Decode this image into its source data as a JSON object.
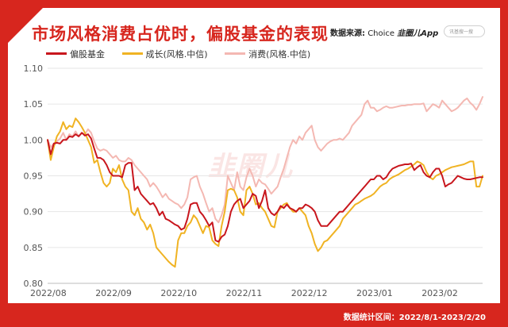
{
  "header": {
    "title": "市场风格消费占优时，偏股基金的表现",
    "source_label": "数据来源:",
    "source_name": "Choice",
    "source_app": "韭圈儿App",
    "search_placeholder": "讯基搜一搜"
  },
  "watermark": "韭圈儿",
  "footer": {
    "stat_range": "数据统计区间：2022/8/1-2023/2/20"
  },
  "colors": {
    "frame": "#d7261e",
    "fund": "#c8161d",
    "growth": "#f0b323",
    "consumer": "#f4b8b2"
  },
  "chart_data": {
    "type": "line",
    "title": "市场风格消费占优时，偏股基金的表现",
    "xlabel": "",
    "ylabel": "",
    "ylim": [
      0.8,
      1.1
    ],
    "yticks": [
      "0.80",
      "0.85",
      "0.90",
      "0.95",
      "1.00",
      "1.05",
      "1.10"
    ],
    "xlim": [
      0,
      140
    ],
    "xticks": [
      {
        "label": "2022/08",
        "x": 0
      },
      {
        "label": "2022/09",
        "x": 21
      },
      {
        "label": "2022/10",
        "x": 42
      },
      {
        "label": "2022/11",
        "x": 63
      },
      {
        "label": "2022/12",
        "x": 84
      },
      {
        "label": "2023/01",
        "x": 105
      },
      {
        "label": "2023/02",
        "x": 126
      }
    ],
    "legend_position": "top-left",
    "grid": "horizontal",
    "series": [
      {
        "name": "偏股基金",
        "color": "#c8161d",
        "x": [
          0,
          1,
          2,
          3,
          4,
          5,
          6,
          7,
          8,
          9,
          10,
          11,
          12,
          13,
          14,
          15,
          16,
          17,
          18,
          19,
          20,
          21,
          22,
          23,
          24,
          25,
          26,
          27,
          28,
          29,
          30,
          31,
          32,
          33,
          34,
          35,
          36,
          37,
          38,
          39,
          40,
          41,
          42,
          43,
          44,
          45,
          46,
          47,
          48,
          49,
          50,
          51,
          52,
          53,
          54,
          55,
          56,
          57,
          58,
          59,
          60,
          61,
          62,
          63,
          64,
          65,
          66,
          67,
          68,
          69,
          70,
          71,
          72,
          73,
          74,
          75,
          76,
          77,
          78,
          79,
          80,
          81,
          82,
          83,
          84,
          85,
          86,
          87,
          88,
          89,
          90,
          91,
          92,
          93,
          94,
          95,
          96,
          97,
          98,
          99,
          100,
          101,
          102,
          103,
          104,
          105,
          106,
          107,
          108,
          109,
          110,
          111,
          112,
          113,
          114,
          115,
          116,
          117,
          118,
          119,
          120,
          121,
          122,
          123,
          124,
          125,
          126,
          127,
          128,
          129,
          130,
          131,
          132,
          133,
          134,
          135,
          136,
          137,
          138,
          139,
          140
        ],
        "values": [
          1.0,
          0.98,
          0.995,
          0.996,
          0.995,
          1.0,
          1.0,
          1.005,
          1.004,
          1.008,
          1.005,
          1.01,
          1.006,
          1.008,
          1.002,
          0.988,
          0.975,
          0.975,
          0.972,
          0.965,
          0.955,
          0.95,
          0.95,
          0.95,
          0.948,
          0.965,
          0.968,
          0.968,
          0.93,
          0.935,
          0.925,
          0.92,
          0.915,
          0.91,
          0.912,
          0.905,
          0.895,
          0.9,
          0.89,
          0.888,
          0.885,
          0.882,
          0.88,
          0.875,
          0.877,
          0.89,
          0.91,
          0.912,
          0.912,
          0.9,
          0.895,
          0.888,
          0.88,
          0.885,
          0.86,
          0.858,
          0.865,
          0.868,
          0.88,
          0.9,
          0.91,
          0.915,
          0.918,
          0.905,
          0.91,
          0.915,
          0.925,
          0.922,
          0.905,
          0.915,
          0.93,
          0.905,
          0.898,
          0.895,
          0.9,
          0.908,
          0.905,
          0.91,
          0.905,
          0.903,
          0.9,
          0.905,
          0.905,
          0.91,
          0.908,
          0.905,
          0.9,
          0.888,
          0.88,
          0.88,
          0.88,
          0.885,
          0.89,
          0.895,
          0.9,
          0.9,
          0.905,
          0.91,
          0.915,
          0.92,
          0.925,
          0.93,
          0.935,
          0.94,
          0.945,
          0.945,
          0.95,
          0.95,
          0.945,
          0.948,
          0.955,
          0.96,
          0.962,
          0.964,
          0.965,
          0.966,
          0.966,
          0.967,
          0.958,
          0.962,
          0.965,
          0.955,
          0.95,
          0.948,
          0.955,
          0.96,
          0.96,
          0.95,
          0.935,
          0.938,
          0.94,
          0.945,
          0.95,
          0.948,
          0.946,
          0.945,
          0.945,
          0.946,
          0.947,
          0.948,
          0.948
        ]
      },
      {
        "name": "成长(风格.中信)",
        "color": "#f0b323",
        "x": [
          0,
          1,
          2,
          3,
          4,
          5,
          6,
          7,
          8,
          9,
          10,
          11,
          12,
          13,
          14,
          15,
          16,
          17,
          18,
          19,
          20,
          21,
          22,
          23,
          24,
          25,
          26,
          27,
          28,
          29,
          30,
          31,
          32,
          33,
          34,
          35,
          36,
          37,
          38,
          39,
          40,
          41,
          42,
          43,
          44,
          45,
          46,
          47,
          48,
          49,
          50,
          51,
          52,
          53,
          54,
          55,
          56,
          57,
          58,
          59,
          60,
          61,
          62,
          63,
          64,
          65,
          66,
          67,
          68,
          69,
          70,
          71,
          72,
          73,
          74,
          75,
          76,
          77,
          78,
          79,
          80,
          81,
          82,
          83,
          84,
          85,
          86,
          87,
          88,
          89,
          90,
          91,
          92,
          93,
          94,
          95,
          96,
          97,
          98,
          99,
          100,
          101,
          102,
          103,
          104,
          105,
          106,
          107,
          108,
          109,
          110,
          111,
          112,
          113,
          114,
          115,
          116,
          117,
          118,
          119,
          120,
          121,
          122,
          123,
          124,
          125,
          126,
          127,
          128,
          129,
          130,
          131,
          132,
          133,
          134,
          135,
          136,
          137,
          138,
          139,
          140
        ],
        "values": [
          1.0,
          0.972,
          0.99,
          1.005,
          1.012,
          1.025,
          1.015,
          1.02,
          1.018,
          1.03,
          1.025,
          1.018,
          1.01,
          1.0,
          0.99,
          0.968,
          0.972,
          0.955,
          0.94,
          0.935,
          0.94,
          0.96,
          0.955,
          0.965,
          0.945,
          0.935,
          0.93,
          0.9,
          0.895,
          0.905,
          0.89,
          0.885,
          0.875,
          0.882,
          0.87,
          0.85,
          0.845,
          0.84,
          0.835,
          0.83,
          0.826,
          0.823,
          0.86,
          0.87,
          0.87,
          0.88,
          0.885,
          0.895,
          0.89,
          0.88,
          0.87,
          0.88,
          0.878,
          0.86,
          0.855,
          0.852,
          0.88,
          0.9,
          0.93,
          0.932,
          0.93,
          0.92,
          0.9,
          0.895,
          0.93,
          0.935,
          0.925,
          0.91,
          0.912,
          0.905,
          0.9,
          0.89,
          0.88,
          0.878,
          0.9,
          0.905,
          0.91,
          0.912,
          0.905,
          0.9,
          0.9,
          0.905,
          0.9,
          0.895,
          0.88,
          0.87,
          0.855,
          0.845,
          0.85,
          0.858,
          0.86,
          0.865,
          0.87,
          0.875,
          0.88,
          0.89,
          0.895,
          0.9,
          0.905,
          0.91,
          0.912,
          0.915,
          0.918,
          0.92,
          0.922,
          0.925,
          0.93,
          0.935,
          0.938,
          0.94,
          0.945,
          0.948,
          0.95,
          0.952,
          0.955,
          0.958,
          0.96,
          0.963,
          0.966,
          0.97,
          0.968,
          0.965,
          0.955,
          0.948,
          0.945,
          0.95,
          0.952,
          0.955,
          0.958,
          0.96,
          0.962,
          0.963,
          0.964,
          0.965,
          0.966,
          0.968,
          0.97,
          0.97,
          0.935,
          0.935,
          0.95
        ]
      },
      {
        "name": "消费(风格.中信)",
        "color": "#f4b8b2",
        "x": [
          0,
          1,
          2,
          3,
          4,
          5,
          6,
          7,
          8,
          9,
          10,
          11,
          12,
          13,
          14,
          15,
          16,
          17,
          18,
          19,
          20,
          21,
          22,
          23,
          24,
          25,
          26,
          27,
          28,
          29,
          30,
          31,
          32,
          33,
          34,
          35,
          36,
          37,
          38,
          39,
          40,
          41,
          42,
          43,
          44,
          45,
          46,
          47,
          48,
          49,
          50,
          51,
          52,
          53,
          54,
          55,
          56,
          57,
          58,
          59,
          60,
          61,
          62,
          63,
          64,
          65,
          66,
          67,
          68,
          69,
          70,
          71,
          72,
          73,
          74,
          75,
          76,
          77,
          78,
          79,
          80,
          81,
          82,
          83,
          84,
          85,
          86,
          87,
          88,
          89,
          90,
          91,
          92,
          93,
          94,
          95,
          96,
          97,
          98,
          99,
          100,
          101,
          102,
          103,
          104,
          105,
          106,
          107,
          108,
          109,
          110,
          111,
          112,
          113,
          114,
          115,
          116,
          117,
          118,
          119,
          120,
          121,
          122,
          123,
          124,
          125,
          126,
          127,
          128,
          129,
          130,
          131,
          132,
          133,
          134,
          135,
          136,
          137,
          138,
          139,
          140
        ],
        "values": [
          1.0,
          0.99,
          0.995,
          0.998,
          1.002,
          1.01,
          1.0,
          1.008,
          1.005,
          1.012,
          1.005,
          1.01,
          1.008,
          1.015,
          1.01,
          0.998,
          0.988,
          0.985,
          0.987,
          0.985,
          0.98,
          0.975,
          0.978,
          0.972,
          0.97,
          0.97,
          0.975,
          0.972,
          0.965,
          0.96,
          0.955,
          0.95,
          0.945,
          0.935,
          0.94,
          0.935,
          0.928,
          0.92,
          0.925,
          0.918,
          0.915,
          0.912,
          0.91,
          0.905,
          0.91,
          0.92,
          0.945,
          0.948,
          0.95,
          0.935,
          0.925,
          0.912,
          0.9,
          0.905,
          0.89,
          0.885,
          0.895,
          0.91,
          0.95,
          0.94,
          0.93,
          0.955,
          0.935,
          0.93,
          0.948,
          0.96,
          0.95,
          0.935,
          0.945,
          0.94,
          0.938,
          0.932,
          0.925,
          0.93,
          0.935,
          0.948,
          0.96,
          0.975,
          0.99,
          1.0,
          0.995,
          1.005,
          1.0,
          1.01,
          1.015,
          1.02,
          1.0,
          0.99,
          0.985,
          0.99,
          0.995,
          0.998,
          1.0,
          1.0,
          1.002,
          1.0,
          1.005,
          1.01,
          1.02,
          1.025,
          1.03,
          1.035,
          1.05,
          1.055,
          1.045,
          1.045,
          1.04,
          1.042,
          1.045,
          1.047,
          1.045,
          1.045,
          1.046,
          1.047,
          1.048,
          1.048,
          1.049,
          1.049,
          1.05,
          1.05,
          1.05,
          1.051,
          1.04,
          1.045,
          1.05,
          1.048,
          1.045,
          1.055,
          1.05,
          1.045,
          1.04,
          1.042,
          1.045,
          1.05,
          1.055,
          1.058,
          1.052,
          1.048,
          1.042,
          1.05,
          1.06
        ]
      }
    ]
  }
}
